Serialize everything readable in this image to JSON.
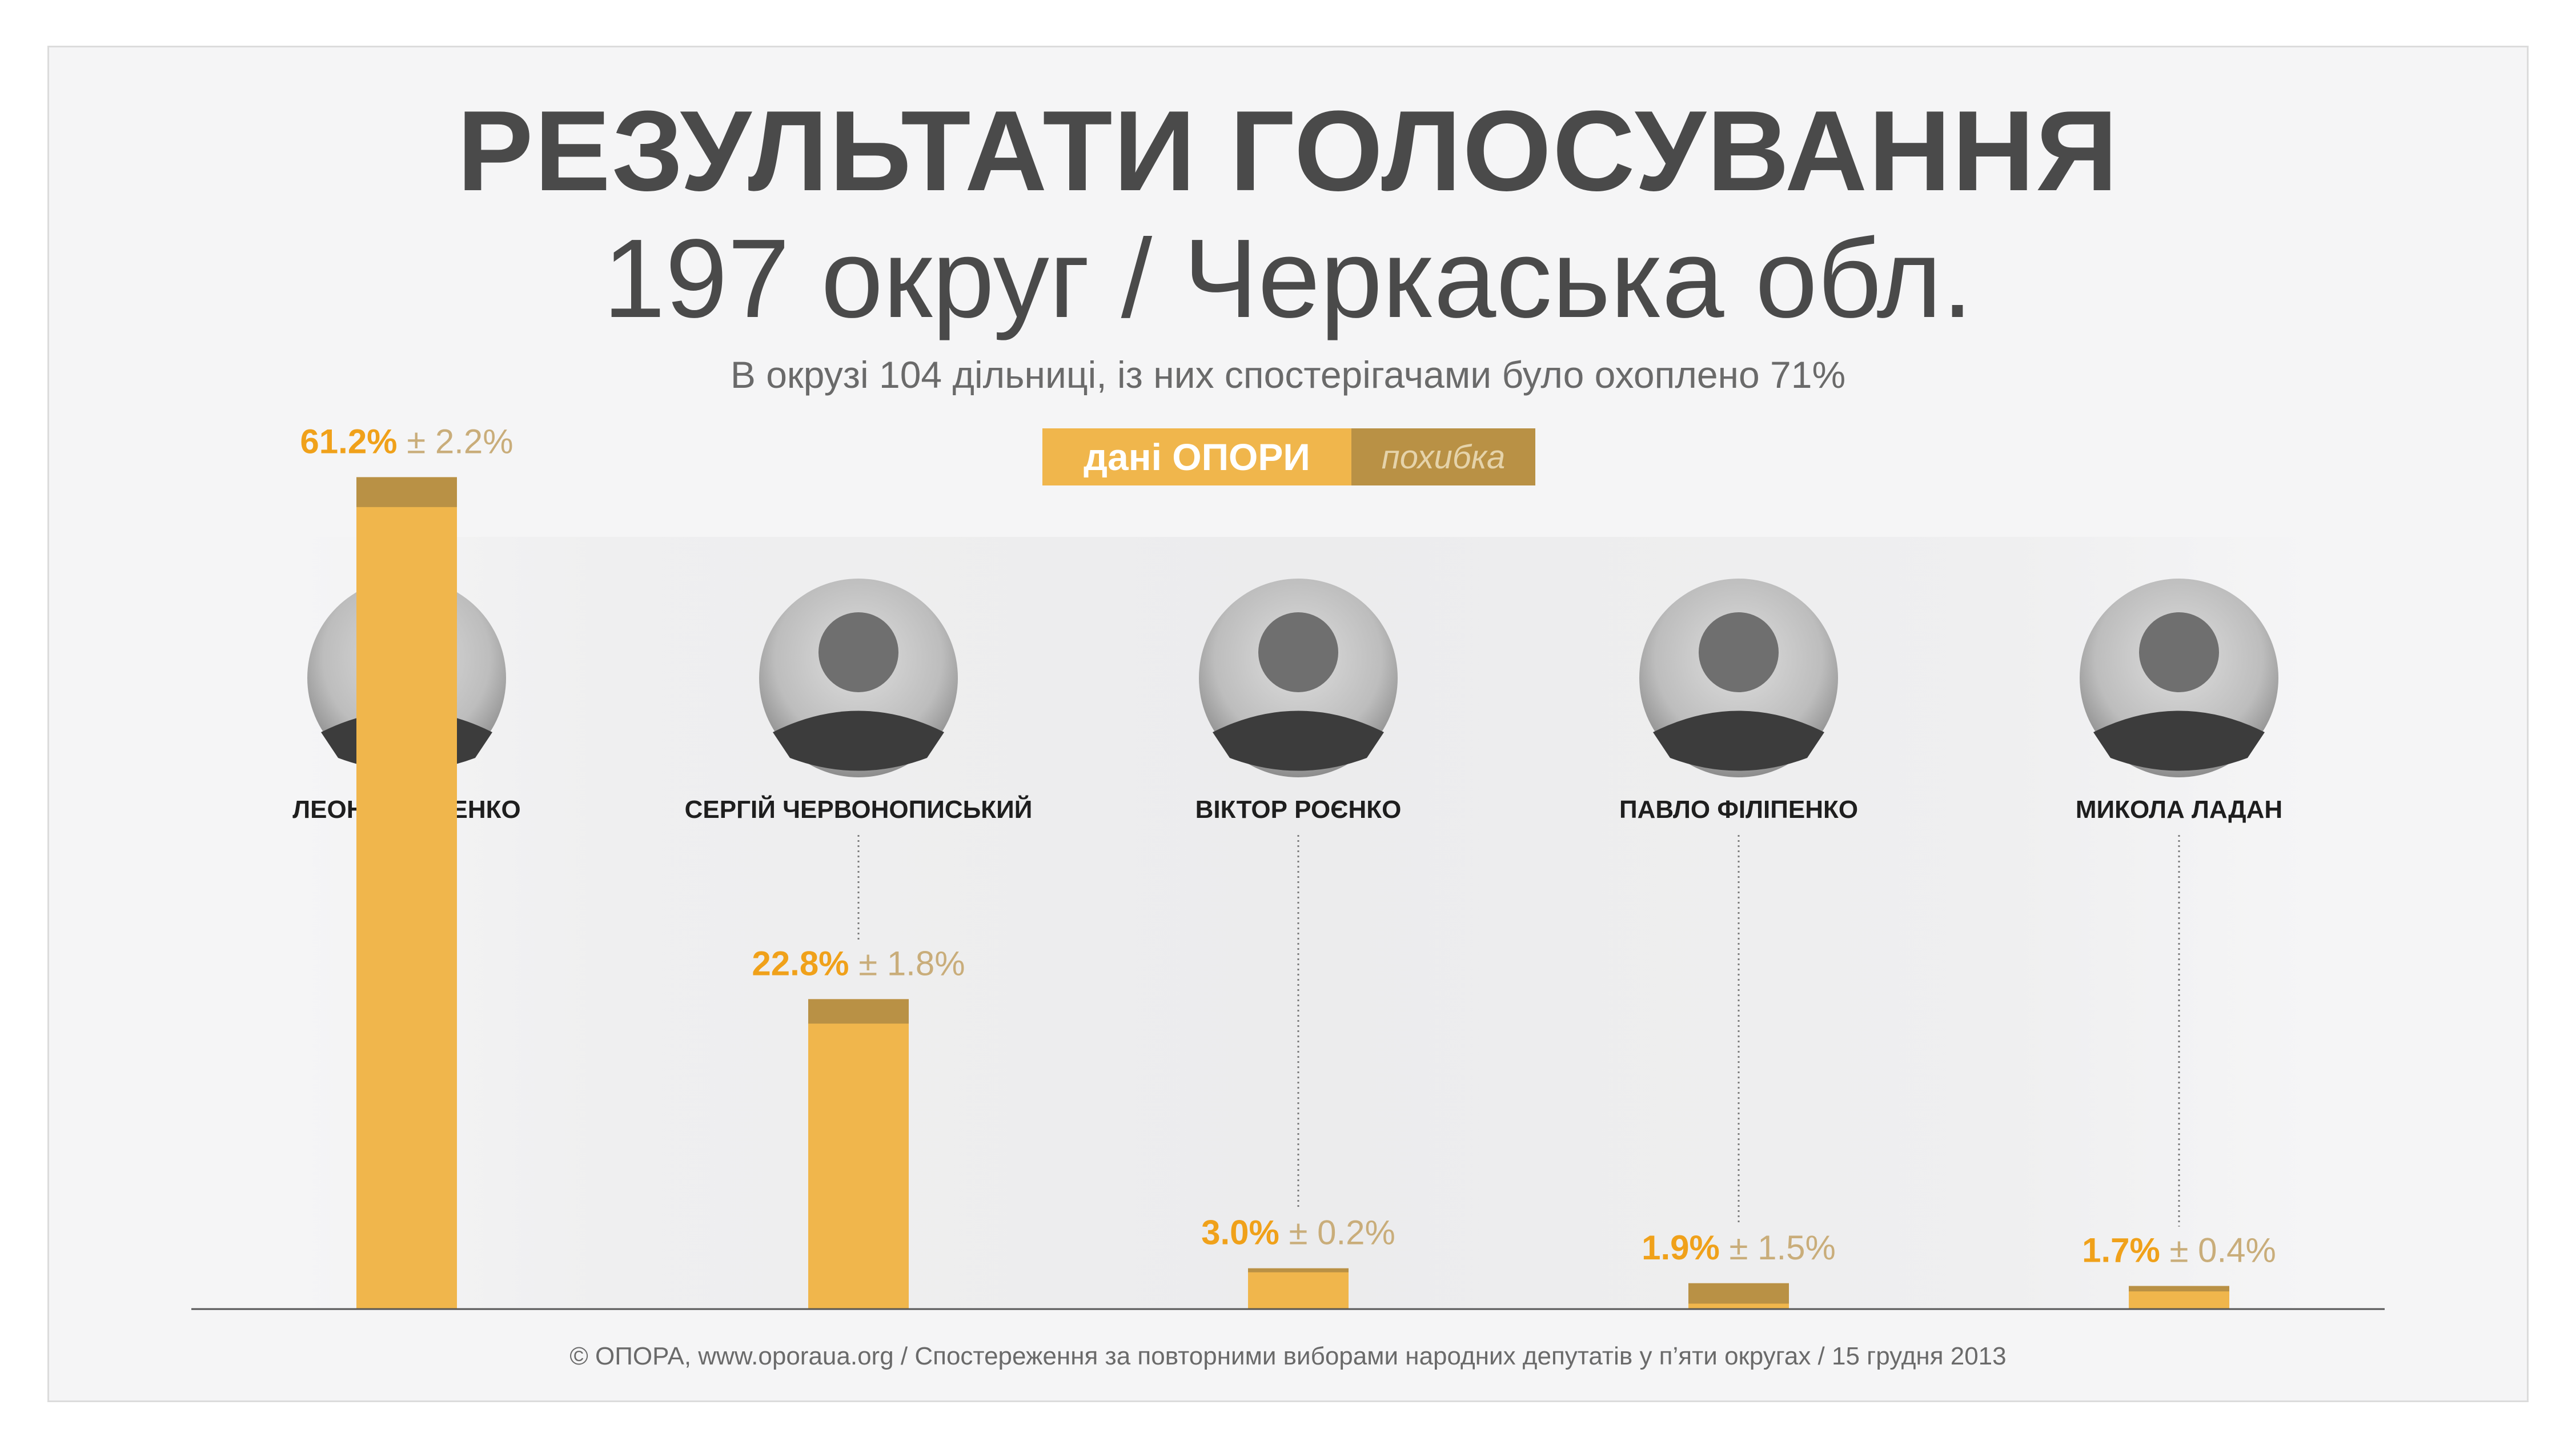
{
  "title": "РЕЗУЛЬТАТИ ГОЛОСУВАННЯ",
  "subtitle": "197 округ / Черкаська обл.",
  "note": "В окрузі 104 дільниці, із них спостерігачами було охоплено 71%",
  "legend": {
    "main": "дані ОПОРИ",
    "error": "похибка"
  },
  "colors": {
    "bar": "#f0b64c",
    "error": "#b99145",
    "value_text": "#f0a11a",
    "error_text": "#c9ad7a",
    "name_text": "#1e1e1e"
  },
  "chart_data": {
    "type": "bar",
    "categories": [
      "ЛЕОНІД ДАЦЕНКО",
      "СЕРГІЙ ЧЕРВОНОПИСЬКИЙ",
      "ВІКТОР РОЄНКО",
      "ПАВЛО ФІЛІПЕНКО",
      "МИКОЛА ЛАДАН"
    ],
    "values": [
      61.2,
      22.8,
      3.0,
      1.9,
      1.7
    ],
    "errors": [
      2.2,
      1.8,
      0.2,
      1.5,
      0.4
    ],
    "value_labels": [
      "61.2%",
      "22.8%",
      "3.0%",
      "1.9%",
      "1.7%"
    ],
    "error_labels": [
      "± 2.2%",
      "± 1.8%",
      "± 0.2%",
      "± 1.5%",
      "± 0.4%"
    ],
    "ylim": [
      0,
      63.4
    ]
  },
  "footer": "© ОПОРА, www.oporaua.org / Спостереження за повторними виборами народних депутатів  у п’яти округах / 15 грудня 2013"
}
